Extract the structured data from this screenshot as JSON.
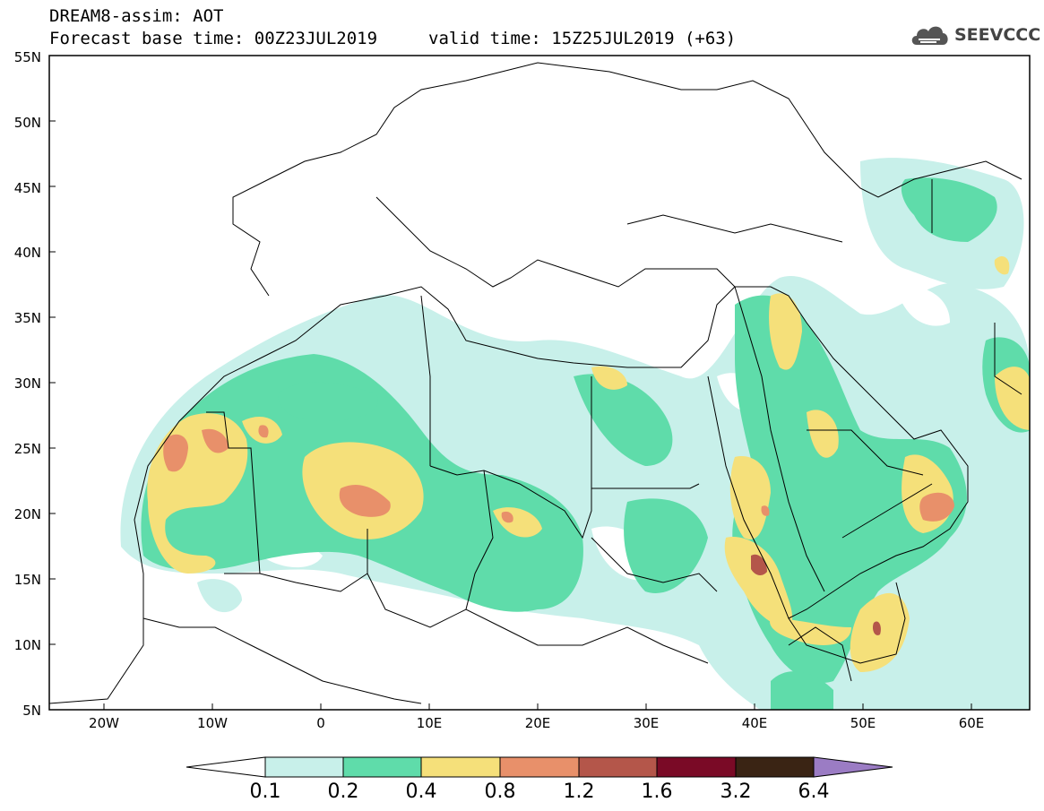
{
  "title": {
    "line1": "DREAM8-assim: AOT",
    "line2_left": "Forecast base time: 00Z23JUL2019",
    "line2_right": "valid time: 15Z25JUL2019 (+63)"
  },
  "logo": {
    "text": "SEEVCCC",
    "icon": "cloud-icon"
  },
  "axes": {
    "lat_labels": [
      "55N",
      "50N",
      "45N",
      "40N",
      "35N",
      "30N",
      "25N",
      "20N",
      "15N",
      "10N",
      "5N"
    ],
    "lon_labels": [
      "20W",
      "10W",
      "0",
      "10E",
      "20E",
      "30E",
      "40E",
      "50E",
      "60E"
    ],
    "lat_range": [
      5,
      55
    ],
    "lon_range": [
      -25,
      65
    ]
  },
  "colorbar": {
    "levels": [
      "0.1",
      "0.2",
      "0.4",
      "0.8",
      "1.2",
      "1.6",
      "3.2",
      "6.4"
    ],
    "colors": [
      "#c8f0ea",
      "#5fdcaa",
      "#f5e07a",
      "#e8906a",
      "#b4564a",
      "#7a0a26",
      "#3a2414",
      "#9b7cc4"
    ]
  }
}
